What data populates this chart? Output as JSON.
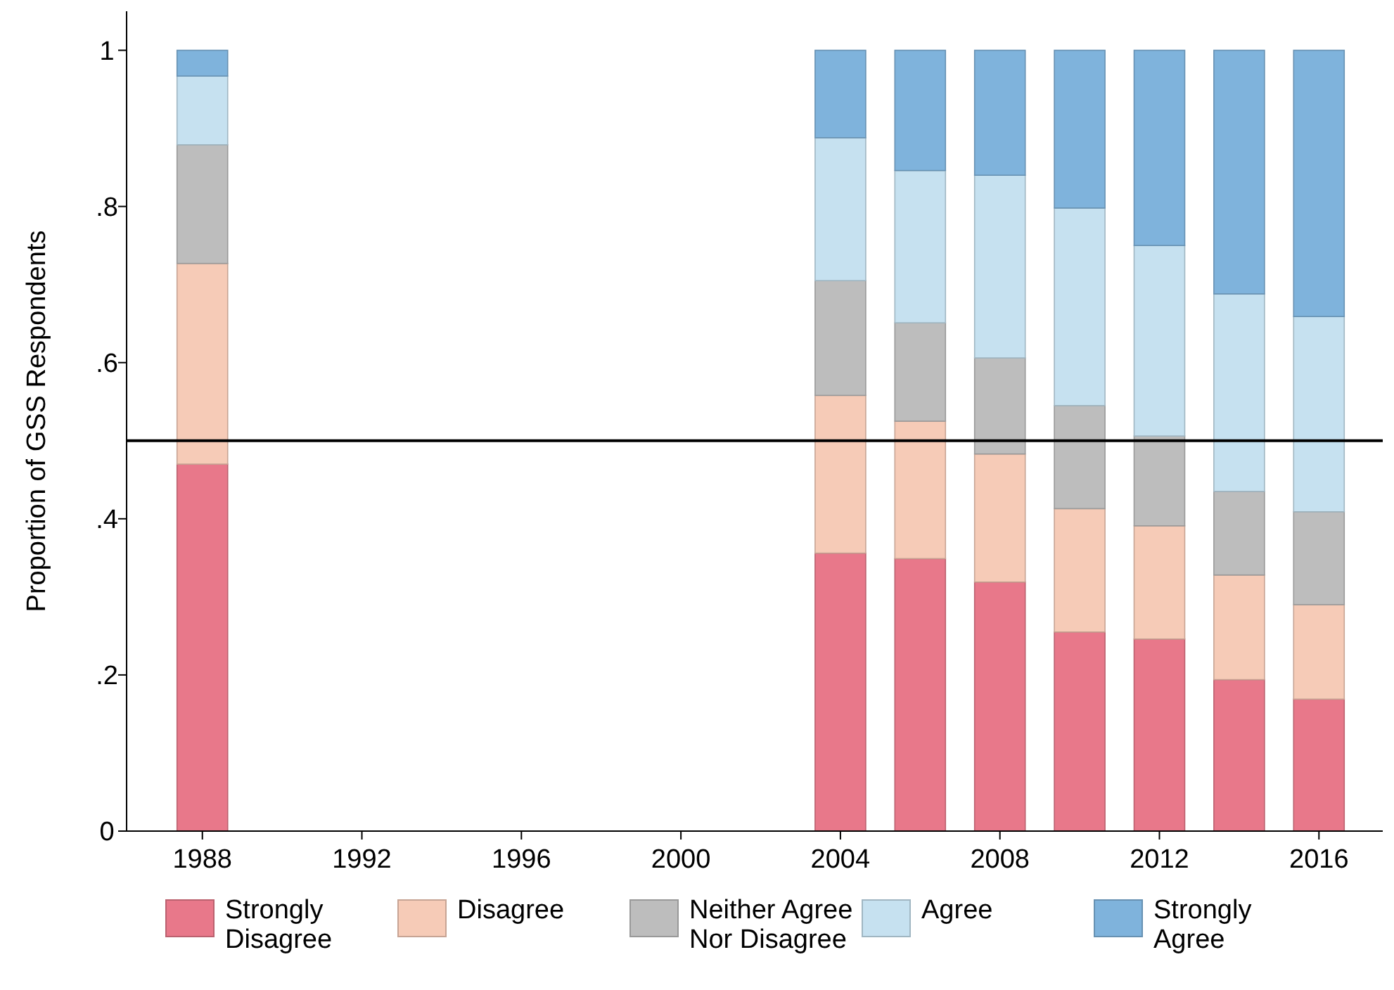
{
  "chart_data": {
    "type": "bar",
    "stacked": true,
    "ylabel": "Proportion of GSS Respondents",
    "x": [
      1988,
      2004,
      2006,
      2008,
      2010,
      2012,
      2014,
      2016
    ],
    "xlim": [
      1986.1,
      2017.6
    ],
    "xticks": [
      1988,
      1992,
      1996,
      2000,
      2004,
      2008,
      2012,
      2016
    ],
    "ylim": [
      0,
      1.05
    ],
    "yticks": [
      {
        "value": 0,
        "label": "0"
      },
      {
        "value": 0.2,
        "label": ".2"
      },
      {
        "value": 0.4,
        "label": ".4"
      },
      {
        "value": 0.6,
        "label": ".6"
      },
      {
        "value": 0.8,
        "label": ".8"
      },
      {
        "value": 1,
        "label": "1"
      }
    ],
    "series": [
      {
        "name": "Strongly\nDisagree",
        "color": "#e8788a",
        "values": [
          0.47,
          0.356,
          0.349,
          0.319,
          0.255,
          0.246,
          0.194,
          0.169
        ]
      },
      {
        "name": "Disagree",
        "color": "#f6cbb7",
        "values": [
          0.257,
          0.202,
          0.176,
          0.164,
          0.158,
          0.145,
          0.134,
          0.121
        ]
      },
      {
        "name": "Neither Agree\nNor Disagree",
        "color": "#bdbdbd",
        "values": [
          0.152,
          0.147,
          0.126,
          0.123,
          0.132,
          0.115,
          0.107,
          0.119
        ]
      },
      {
        "name": "Agree",
        "color": "#c6e1f0",
        "values": [
          0.088,
          0.183,
          0.195,
          0.234,
          0.253,
          0.244,
          0.253,
          0.25
        ]
      },
      {
        "name": "Strongly\nAgree",
        "color": "#7fb3dc",
        "values": [
          0.033,
          0.112,
          0.154,
          0.16,
          0.202,
          0.25,
          0.312,
          0.341
        ]
      }
    ],
    "ref_lines": [
      {
        "axis": "y",
        "value": 0.5,
        "color": "#000000"
      }
    ],
    "legend": "bottom"
  }
}
